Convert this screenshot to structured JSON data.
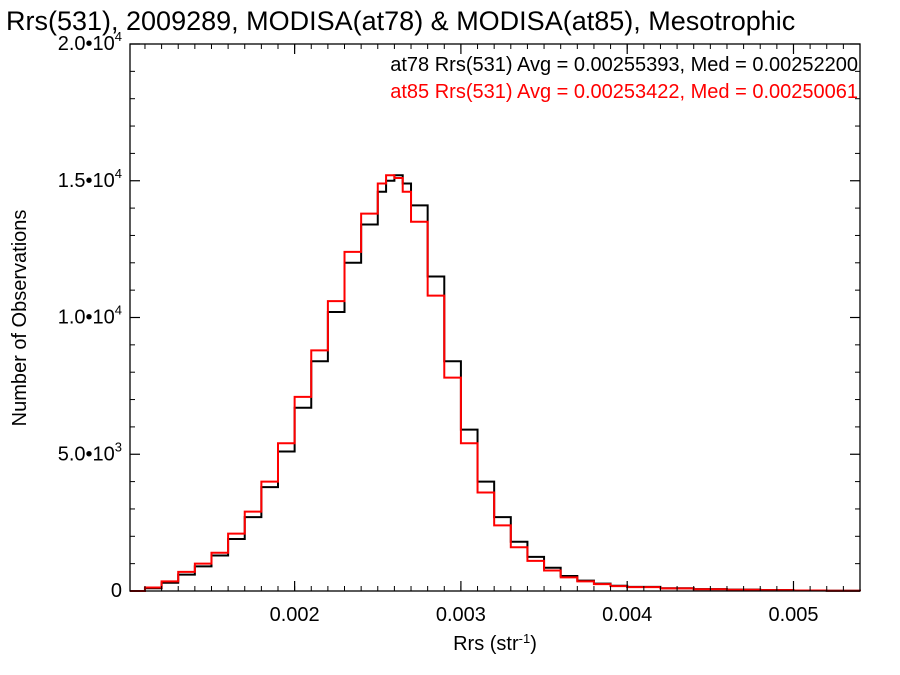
{
  "chart_data": {
    "type": "line",
    "title": "Rrs(531), 2009289, MODISA(at78) & MODISA(at85), Mesotrophic",
    "xlabel": "Rrs (str",
    "xlabel_sup": "-1",
    "xlabel_tail": ")",
    "ylabel": "Number of Observations",
    "xlim": [
      0.00101,
      0.0054
    ],
    "ylim": [
      0,
      20000
    ],
    "x_ticks": [
      0.002,
      0.003,
      0.004,
      0.005
    ],
    "x_tick_labels": [
      "0.002",
      "0.003",
      "0.004",
      "0.005"
    ],
    "y_ticks": [
      0,
      5000,
      10000,
      15000,
      20000
    ],
    "y_tick_labels": [
      {
        "base": "0",
        "exp": ""
      },
      {
        "base": "5.0•10",
        "exp": "3"
      },
      {
        "base": "1.0•10",
        "exp": "4"
      },
      {
        "base": "1.5•10",
        "exp": "4"
      },
      {
        "base": "2.0•10",
        "exp": "4"
      }
    ],
    "legend_position": "top-right",
    "annotations": [
      {
        "text": "at78 Rrs(531) Avg = 0.00255393, Med = 0.00252200",
        "color": "#000000"
      },
      {
        "text": "at85 Rrs(531) Avg = 0.00253422, Med = 0.00250061",
        "color": "#ff0000"
      }
    ],
    "series": [
      {
        "color": "#000000",
        "x": [
          0.00101,
          0.0011,
          0.0012,
          0.0013,
          0.0014,
          0.0015,
          0.0016,
          0.0017,
          0.0018,
          0.0019,
          0.002,
          0.0021,
          0.0022,
          0.0023,
          0.0024,
          0.0025,
          0.00255,
          0.0026,
          0.00265,
          0.0027,
          0.0028,
          0.0029,
          0.003,
          0.0031,
          0.0032,
          0.0033,
          0.0034,
          0.0035,
          0.0036,
          0.0037,
          0.0038,
          0.0039,
          0.004,
          0.0042,
          0.0044,
          0.0046,
          0.0048,
          0.005,
          0.0052,
          0.0054
        ],
        "y": [
          0,
          100,
          300,
          600,
          900,
          1300,
          1900,
          2700,
          3800,
          5100,
          6700,
          8400,
          10200,
          12000,
          13400,
          14600,
          15000,
          15200,
          14900,
          14100,
          11500,
          8400,
          5900,
          4000,
          2700,
          1800,
          1250,
          850,
          550,
          380,
          270,
          190,
          150,
          100,
          70,
          50,
          35,
          20,
          10,
          5
        ]
      },
      {
        "color": "#ff0000",
        "x": [
          0.00101,
          0.0011,
          0.0012,
          0.0013,
          0.0014,
          0.0015,
          0.0016,
          0.0017,
          0.0018,
          0.0019,
          0.002,
          0.0021,
          0.0022,
          0.0023,
          0.0024,
          0.0025,
          0.00255,
          0.0026,
          0.00265,
          0.0027,
          0.0028,
          0.0029,
          0.003,
          0.0031,
          0.0032,
          0.0033,
          0.0034,
          0.0035,
          0.0036,
          0.0037,
          0.0038,
          0.0039,
          0.004,
          0.0042,
          0.0044,
          0.0046,
          0.0048,
          0.005,
          0.0052,
          0.0054
        ],
        "y": [
          0,
          130,
          350,
          700,
          1000,
          1400,
          2100,
          2900,
          4000,
          5400,
          7100,
          8800,
          10600,
          12400,
          13800,
          14900,
          15200,
          15100,
          14600,
          13500,
          10800,
          7800,
          5400,
          3600,
          2400,
          1600,
          1100,
          750,
          500,
          350,
          250,
          180,
          140,
          95,
          65,
          45,
          30,
          18,
          8,
          4
        ]
      }
    ]
  }
}
